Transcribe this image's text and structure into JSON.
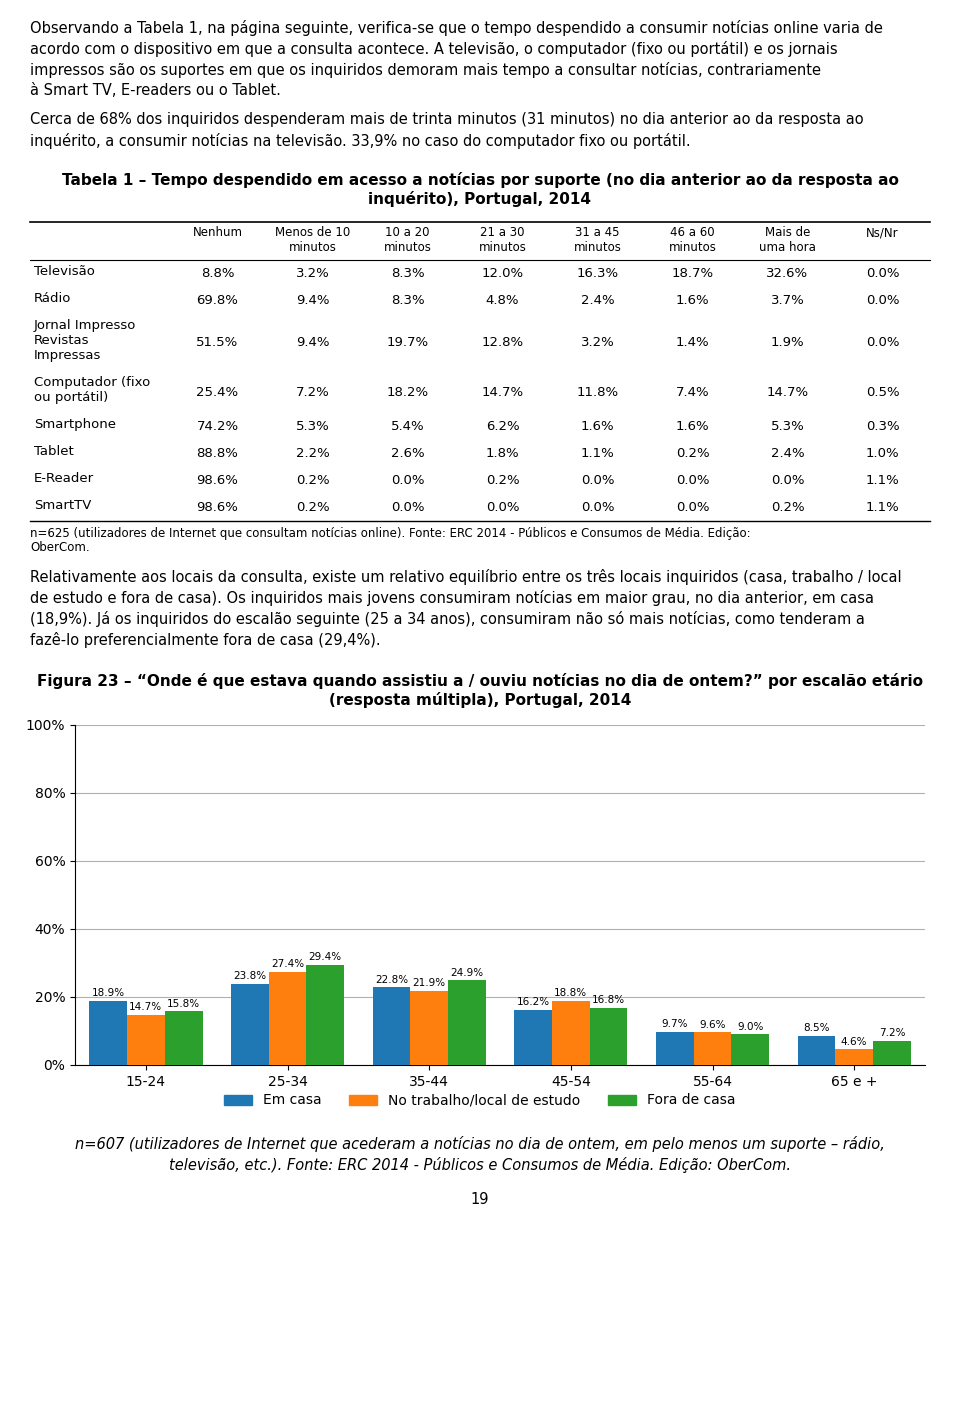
{
  "chart_data": [
    {
      "type": "table",
      "annotations": [
        [
          "Observando a Tabela 1, na página seguinte, verifica-se que o tempo despendido a consumir notícias online varia de",
          "acordo com o dispositivo em que a consulta acontece. A televisão, o computador (fixo ou portátil) e os jornais",
          "impressos são os suportes em que os inquiridos demoram mais tempo a consultar notícias, contrariamente",
          "à Smart TV, E-readers ou o Tablet."
        ],
        [
          "Cerca de 68% dos inquiridos despenderam mais de trinta minutos (31 minutos) no dia anterior ao da resposta ao",
          "inquérito, a consumir notícias na televisão. 33,9% no caso do computador fixo ou portátil."
        ]
      ],
      "title": "Tabela 1 – Tempo despendido em acesso a notícias por suporte (no dia anterior ao da resposta ao\ninquérito), Portugal, 2014",
      "columns": [
        "Nenhum",
        "Menos de 10\nminutos",
        "10 a 20\nminutos",
        "21 a 30\nminutos",
        "31 a 45\nminutos",
        "46 a 60\nminutos",
        "Mais de\numa hora",
        "Ns/Nr"
      ],
      "rows": [
        {
          "name": "Televisão",
          "values": [
            8.8,
            3.2,
            8.3,
            12.0,
            16.3,
            18.7,
            32.6,
            0.0
          ],
          "value_labels": [
            "8.8%",
            "3.2%",
            "8.3%",
            "12.0%",
            "16.3%",
            "18.7%",
            "32.6%",
            "0.0%"
          ]
        },
        {
          "name": "Rádio",
          "values": [
            69.8,
            9.4,
            8.3,
            4.8,
            2.4,
            1.6,
            3.7,
            0.0
          ],
          "value_labels": [
            "69.8%",
            "9.4%",
            "8.3%",
            "4.8%",
            "2.4%",
            "1.6%",
            "3.7%",
            "0.0%"
          ]
        },
        {
          "name": "Jornal Impresso\nRevistas\nImpressas",
          "values": [
            51.5,
            9.4,
            19.7,
            12.8,
            3.2,
            1.4,
            1.9,
            0.0
          ],
          "value_labels": [
            "51.5%",
            "9.4%",
            "19.7%",
            "12.8%",
            "3.2%",
            "1.4%",
            "1.9%",
            "0.0%"
          ]
        },
        {
          "name": "Computador (fixo\nou portátil)",
          "values": [
            25.4,
            7.2,
            18.2,
            14.7,
            11.8,
            7.4,
            14.7,
            0.5
          ],
          "value_labels": [
            "25.4%",
            "7.2%",
            "18.2%",
            "14.7%",
            "11.8%",
            "7.4%",
            "14.7%",
            "0.5%"
          ]
        },
        {
          "name": "Smartphone",
          "values": [
            74.2,
            5.3,
            5.4,
            6.2,
            1.6,
            1.6,
            5.3,
            0.3
          ],
          "value_labels": [
            "74.2%",
            "5.3%",
            "5.4%",
            "6.2%",
            "1.6%",
            "1.6%",
            "5.3%",
            "0.3%"
          ]
        },
        {
          "name": "Tablet",
          "values": [
            88.8,
            2.2,
            2.6,
            1.8,
            1.1,
            0.2,
            2.4,
            1.0
          ],
          "value_labels": [
            "88.8%",
            "2.2%",
            "2.6%",
            "1.8%",
            "1.1%",
            "0.2%",
            "2.4%",
            "1.0%"
          ]
        },
        {
          "name": "E-Reader",
          "values": [
            98.6,
            0.2,
            0.0,
            0.2,
            0.0,
            0.0,
            0.0,
            1.1
          ],
          "value_labels": [
            "98.6%",
            "0.2%",
            "0.0%",
            "0.2%",
            "0.0%",
            "0.0%",
            "0.0%",
            "1.1%"
          ]
        },
        {
          "name": "SmartTV",
          "values": [
            98.6,
            0.2,
            0.0,
            0.0,
            0.0,
            0.0,
            0.2,
            1.1
          ],
          "value_labels": [
            "98.6%",
            "0.2%",
            "0.0%",
            "0.0%",
            "0.0%",
            "0.0%",
            "0.2%",
            "1.1%"
          ]
        }
      ],
      "note": [
        "n=625 (utilizadores de Internet que consultam notícias online). Fonte: ERC 2014 - Públicos e Consumos de Média. Edição:",
        "OberCom."
      ]
    },
    {
      "type": "bar",
      "annotations": [
        [
          "Relativamente aos locais da consulta, existe um relativo equilíbrio entre os três locais inquiridos (casa, trabalho / local",
          "de estudo e fora de casa). Os inquiridos mais jovens consumiram notícias em maior grau, no dia anterior, em casa",
          "(18,9%). Já os inquiridos do escalão seguinte (25 a 34 anos), consumiram não só mais notícias, como tenderam a",
          "fazê-lo preferencialmente fora de casa (29,4%)."
        ]
      ],
      "title": "Figura 23 – “Onde é que estava quando assistiu a / ouviu notícias no dia de ontem?” por escalão etário\n(resposta múltipla), Portugal, 2014",
      "categories": [
        "15-24",
        "25-34",
        "35-44",
        "45-54",
        "55-64",
        "65 e +"
      ],
      "series": [
        {
          "name": "Em casa",
          "values": [
            18.9,
            23.8,
            22.8,
            16.2,
            9.7,
            8.5
          ],
          "value_labels": [
            "18.9%",
            "23.8%",
            "22.8%",
            "16.2%",
            "9.7%",
            "8.5%"
          ]
        },
        {
          "name": "No trabalho/local de estudo",
          "values": [
            14.7,
            27.4,
            21.9,
            18.8,
            9.6,
            4.6
          ],
          "value_labels": [
            "14.7%",
            "27.4%",
            "21.9%",
            "18.8%",
            "9.6%",
            "4.6%"
          ]
        },
        {
          "name": "Fora de casa",
          "values": [
            15.8,
            29.4,
            24.9,
            16.8,
            9.0,
            7.2
          ],
          "value_labels": [
            "15.8%",
            "29.4%",
            "24.9%",
            "16.8%",
            "9.0%",
            "7.2%"
          ]
        }
      ],
      "ylim": [
        0,
        100
      ],
      "yticks": [
        {
          "value": 0,
          "label": "0%"
        },
        {
          "value": 20,
          "label": "20%"
        },
        {
          "value": 40,
          "label": "40%"
        },
        {
          "value": 60,
          "label": "60%"
        },
        {
          "value": 80,
          "label": "80%"
        },
        {
          "value": 100,
          "label": "100%"
        }
      ],
      "grid": true,
      "data_labels": true,
      "legend": "lower center",
      "note": [
        "n=607 (utilizadores de Internet que acederam a notícias no dia de ontem, em pelo menos um suporte – rádio,",
        "televisão, etc.). Fonte: ERC 2014 - Públicos e Consumos de Média. Edição: OberCom."
      ],
      "page_number": "19"
    }
  ]
}
